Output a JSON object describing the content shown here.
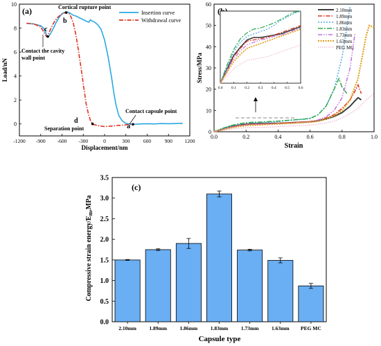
{
  "colors": {
    "insertion": "#29a8e0",
    "withdrawal": "#e0301e",
    "bar": "#6aaef3",
    "s210": "#404040",
    "s189": "#e0301e",
    "s186": "#4aa8e8",
    "s183": "#2ba84a",
    "s173": "#c070e0",
    "s163": "#e0a020",
    "speg": "#f0a0c0"
  },
  "chart_data": [
    {
      "id": "a",
      "type": "line",
      "panel_label": "(a)",
      "xlabel": "Displacement/nm",
      "ylabel": "Load/nN",
      "xlim": [
        -1200,
        1200
      ],
      "ylim": [
        -1,
        10
      ],
      "xticks": [
        "-1200",
        "-900",
        "-600",
        "-300",
        "0",
        "300",
        "600",
        "900",
        "1200"
      ],
      "yticks": [
        "0",
        "2",
        "4",
        "6",
        "8",
        "10"
      ],
      "series": [
        {
          "name": "Insertion curve",
          "x": [
            -1100,
            -1000,
            -900,
            -860,
            -830,
            -810,
            -790,
            -770,
            -720,
            -680,
            -640,
            -600,
            -550,
            -500,
            -450,
            -400,
            -350,
            -300,
            -250,
            -220,
            -200,
            -180,
            -140,
            -100,
            -50,
            0,
            50,
            100,
            130,
            160,
            200,
            250,
            300,
            350,
            400,
            450,
            500,
            600,
            700,
            800,
            900,
            1000,
            1100
          ],
          "y": [
            8.4,
            8.35,
            8.2,
            8.0,
            7.6,
            7.35,
            7.3,
            7.45,
            8.0,
            8.5,
            8.9,
            9.2,
            9.35,
            9.3,
            9.1,
            9.0,
            8.85,
            8.7,
            8.55,
            8.5,
            8.7,
            8.6,
            8.5,
            8.3,
            7.9,
            7.0,
            5.6,
            3.8,
            2.6,
            1.6,
            0.7,
            0.25,
            0.05,
            0.0,
            -0.03,
            -0.02,
            0.0,
            0.02,
            0.0,
            0.03,
            0.02,
            0.03,
            0.05
          ]
        },
        {
          "name": "Withdrawal curve",
          "x": [
            -1100,
            -1000,
            -900,
            -860,
            -820,
            -800,
            -770,
            -730,
            -700,
            -660,
            -620,
            -580,
            -540,
            -500,
            -470,
            -440,
            -410,
            -380,
            -350,
            -320,
            -300,
            -280,
            -260,
            -230,
            -200,
            -170,
            -150,
            -120,
            -80,
            -30,
            0,
            50,
            100,
            150,
            200,
            250,
            300,
            350,
            400
          ],
          "y": [
            8.4,
            8.35,
            8.1,
            7.7,
            7.3,
            7.35,
            7.8,
            8.3,
            8.6,
            8.9,
            9.1,
            9.25,
            9.3,
            9.2,
            8.9,
            8.4,
            7.6,
            6.6,
            5.4,
            4.2,
            3.3,
            2.5,
            1.7,
            0.9,
            0.3,
            0.0,
            -0.05,
            -0.1,
            -0.15,
            -0.2,
            -0.22,
            -0.2,
            -0.18,
            -0.15,
            -0.12,
            -0.1,
            -0.08,
            -0.05,
            -0.03
          ]
        }
      ],
      "annotations": {
        "cortical": "Cortical rupture point",
        "contact_cavity_1": "Contact the cavity",
        "contact_cavity_2": "wall point",
        "contact_capsule": "Contact capsule  point",
        "separation": "Separation point",
        "a": "a",
        "b": "b",
        "c": "c",
        "d": "d"
      }
    },
    {
      "id": "b",
      "type": "line",
      "panel_label": "(b)",
      "xlabel": "Strain",
      "ylabel": "Stress/MPa",
      "xlim": [
        0,
        1.0
      ],
      "ylim": [
        0,
        60
      ],
      "xticks": [
        "0.0",
        "0.2",
        "0.4",
        "0.6",
        "0.8",
        "1.0"
      ],
      "yticks": [
        "0",
        "10",
        "20",
        "30",
        "40",
        "50",
        "60"
      ],
      "inset": {
        "xlim": [
          0,
          0.6
        ],
        "ylim": [
          0,
          6
        ],
        "xticks": [
          "0.0",
          "0.1",
          "0.2",
          "0.3",
          "0.4",
          "0.5",
          "0.6"
        ]
      },
      "series": [
        {
          "name": "2.10mm",
          "x": [
            0,
            0.05,
            0.1,
            0.15,
            0.2,
            0.25,
            0.3,
            0.35,
            0.4,
            0.45,
            0.5,
            0.55,
            0.6,
            0.65,
            0.7,
            0.75,
            0.8,
            0.85,
            0.88,
            0.9,
            0.92
          ],
          "y": [
            0,
            1.2,
            2.3,
            3.0,
            3.6,
            3.8,
            3.8,
            3.9,
            4.0,
            4.1,
            4.3,
            4.5,
            4.7,
            5.2,
            6.0,
            7.2,
            9.0,
            12.0,
            14.5,
            16.0,
            15.0
          ]
        },
        {
          "name": "1.89mm",
          "x": [
            0,
            0.05,
            0.1,
            0.15,
            0.2,
            0.25,
            0.3,
            0.35,
            0.4,
            0.45,
            0.5,
            0.55,
            0.6,
            0.65,
            0.7,
            0.75,
            0.8,
            0.85,
            0.88,
            0.9,
            0.92
          ],
          "y": [
            0,
            1.0,
            2.2,
            2.9,
            3.5,
            3.6,
            3.7,
            3.8,
            4.0,
            4.2,
            4.4,
            4.6,
            4.8,
            5.4,
            6.5,
            8.0,
            11.0,
            15.0,
            19.0,
            22.0,
            18.0
          ]
        },
        {
          "name": "1.86mm",
          "x": [
            0,
            0.05,
            0.1,
            0.15,
            0.2,
            0.25,
            0.3,
            0.35,
            0.4,
            0.45,
            0.5,
            0.55,
            0.6,
            0.65,
            0.7,
            0.75,
            0.8,
            0.85
          ],
          "y": [
            0,
            1.3,
            2.6,
            3.4,
            3.9,
            4.1,
            4.3,
            4.5,
            4.8,
            5.2,
            5.5,
            5.8,
            6.2,
            8.0,
            12.0,
            20.0,
            35.0,
            59.0
          ]
        },
        {
          "name": "1.83mm",
          "x": [
            0,
            0.05,
            0.1,
            0.15,
            0.2,
            0.25,
            0.3,
            0.35,
            0.4,
            0.45,
            0.5,
            0.55,
            0.6,
            0.65,
            0.7,
            0.75,
            0.78,
            0.8,
            0.83
          ],
          "y": [
            0,
            1.5,
            2.8,
            3.7,
            4.2,
            4.5,
            4.6,
            4.8,
            5.0,
            5.3,
            5.6,
            5.9,
            6.3,
            8.0,
            12.0,
            20.0,
            25.0,
            21.0,
            18.0
          ]
        },
        {
          "name": "1.73mm",
          "x": [
            0,
            0.05,
            0.1,
            0.15,
            0.2,
            0.25,
            0.3,
            0.35,
            0.4,
            0.45,
            0.5,
            0.55,
            0.6,
            0.65,
            0.7,
            0.75,
            0.8,
            0.85,
            0.88
          ],
          "y": [
            0,
            1.1,
            2.0,
            2.7,
            3.2,
            3.4,
            3.6,
            3.7,
            3.9,
            4.0,
            4.2,
            4.4,
            4.6,
            5.5,
            7.0,
            10.0,
            16.0,
            30.0,
            46.0
          ]
        },
        {
          "name": "1.63mm",
          "x": [
            0,
            0.05,
            0.1,
            0.15,
            0.2,
            0.25,
            0.3,
            0.35,
            0.4,
            0.45,
            0.5,
            0.55,
            0.6,
            0.65,
            0.7,
            0.75,
            0.8,
            0.85,
            0.9,
            0.95,
            0.97,
            1.0
          ],
          "y": [
            0,
            0.9,
            1.8,
            2.4,
            2.9,
            3.1,
            3.3,
            3.5,
            3.7,
            3.9,
            4.1,
            4.3,
            4.5,
            5.0,
            6.0,
            7.5,
            10.0,
            15.0,
            25.0,
            45.0,
            50.0,
            49.0
          ]
        },
        {
          "name": "PEG MC",
          "x": [
            0,
            0.05,
            0.1,
            0.15,
            0.2,
            0.25,
            0.3,
            0.35,
            0.4,
            0.45,
            0.5,
            0.55,
            0.6,
            0.65,
            0.7,
            0.75,
            0.8,
            0.85,
            0.9,
            0.95,
            1.0
          ],
          "y": [
            0,
            0.6,
            1.2,
            1.6,
            1.9,
            2.0,
            2.1,
            2.2,
            2.4,
            2.6,
            2.8,
            3.0,
            3.2,
            3.6,
            4.2,
            5.0,
            6.5,
            8.5,
            11.0,
            15.0,
            18.0
          ]
        }
      ]
    },
    {
      "id": "c",
      "type": "bar",
      "panel_label": "(c)",
      "xlabel": "Capsule type",
      "ylabel_main": "Compressive strain energy/E",
      "ylabel_sub": "m",
      "ylabel_unit": ",MPa",
      "ylim": [
        0,
        3.5
      ],
      "yticks": [
        "0.0",
        "0.5",
        "1.0",
        "1.5",
        "2.0",
        "2.5",
        "3.0",
        "3.5"
      ],
      "categories": [
        "2.10mm",
        "1.89mm",
        "1.86mm",
        "1.83mm",
        "1.73mm",
        "1.63mm",
        "PEG MC"
      ],
      "values": [
        1.5,
        1.75,
        1.9,
        3.1,
        1.74,
        1.49,
        0.87
      ],
      "errors": [
        0.01,
        0.02,
        0.12,
        0.07,
        0.02,
        0.06,
        0.06
      ]
    }
  ]
}
